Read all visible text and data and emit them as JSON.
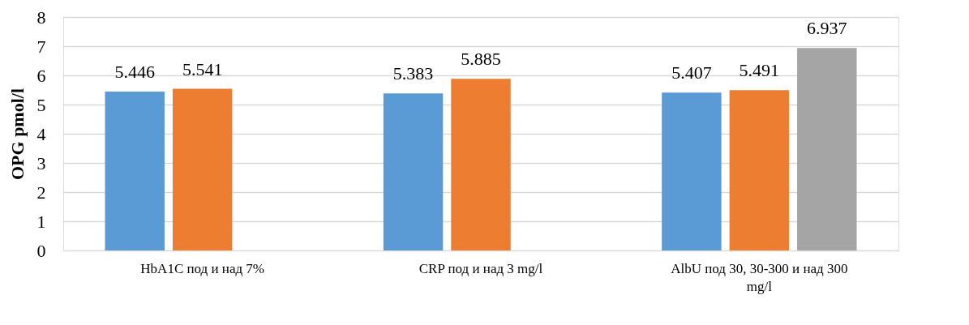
{
  "chart_data": {
    "type": "bar",
    "ylabel": "OPG pmol/l",
    "categories": [
      "HbA1C под и над 7%",
      "CRP под и над 3 mg/l",
      "AlbU под 30, 30-300 и над 300 mg/l"
    ],
    "series": [
      {
        "color": "#5b9bd5",
        "values": [
          5.446,
          5.383,
          5.407
        ]
      },
      {
        "color": "#ed7d31",
        "values": [
          5.541,
          5.885,
          5.491
        ]
      },
      {
        "color": "#a5a5a5",
        "values": [
          null,
          null,
          6.937
        ]
      }
    ],
    "ylim": [
      0,
      8
    ],
    "yticks": [
      0,
      1,
      2,
      3,
      4,
      5,
      6,
      7,
      8
    ],
    "grid": "y",
    "data_labels": true,
    "legend": false
  }
}
